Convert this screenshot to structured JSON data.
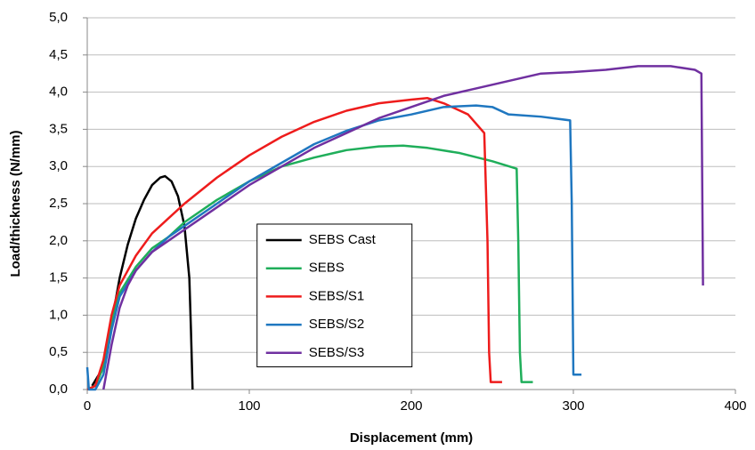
{
  "chart_data": {
    "type": "line",
    "xlabel": "Displacement (mm)",
    "ylabel": "Load/thickness (N/mm)",
    "xlim": [
      0,
      400
    ],
    "xticks": [
      0,
      100,
      200,
      300,
      400
    ],
    "ylim": [
      0,
      5
    ],
    "yticks": [
      {
        "value": 0,
        "label": "0,0"
      },
      {
        "value": 0.5,
        "label": "0,5"
      },
      {
        "value": 1,
        "label": "1,0"
      },
      {
        "value": 1.5,
        "label": "1,5"
      },
      {
        "value": 2,
        "label": "2,0"
      },
      {
        "value": 2.5,
        "label": "2,5"
      },
      {
        "value": 3,
        "label": "3,0"
      },
      {
        "value": 3.5,
        "label": "3,5"
      },
      {
        "value": 4,
        "label": "4,0"
      },
      {
        "value": 4.5,
        "label": "4,5"
      },
      {
        "value": 5,
        "label": "5,0"
      }
    ],
    "grid": true,
    "legend": "center",
    "series": [
      {
        "name": "SEBS Cast",
        "color": "#000000",
        "x": [
          3,
          10,
          15,
          20,
          25,
          30,
          35,
          40,
          45,
          48,
          52,
          56,
          60,
          63,
          64,
          65
        ],
        "values": [
          0.05,
          0.3,
          0.9,
          1.5,
          1.95,
          2.3,
          2.55,
          2.75,
          2.85,
          2.87,
          2.8,
          2.6,
          2.2,
          1.5,
          0.8,
          0
        ]
      },
      {
        "name": "SEBS",
        "color": "#1fae5a",
        "x": [
          0,
          5,
          10,
          15,
          20,
          30,
          40,
          50,
          60,
          80,
          100,
          120,
          140,
          160,
          180,
          195,
          210,
          230,
          250,
          265,
          266,
          267,
          268,
          275
        ],
        "values": [
          0,
          0.05,
          0.3,
          0.9,
          1.3,
          1.65,
          1.9,
          2.05,
          2.25,
          2.55,
          2.8,
          3.0,
          3.12,
          3.22,
          3.27,
          3.28,
          3.25,
          3.18,
          3.07,
          2.97,
          2.0,
          0.5,
          0.1,
          0.1
        ]
      },
      {
        "name": "SEBS/S1",
        "color": "#ee1c1c",
        "x": [
          0,
          5,
          10,
          15,
          20,
          30,
          40,
          50,
          60,
          80,
          100,
          120,
          140,
          160,
          180,
          200,
          210,
          220,
          235,
          245,
          247,
          248,
          249,
          256
        ],
        "values": [
          0,
          0.05,
          0.4,
          1.0,
          1.4,
          1.8,
          2.1,
          2.3,
          2.5,
          2.85,
          3.15,
          3.4,
          3.6,
          3.75,
          3.85,
          3.9,
          3.92,
          3.85,
          3.7,
          3.45,
          2.0,
          0.5,
          0.1,
          0.1
        ]
      },
      {
        "name": "SEBS/S2",
        "color": "#1f77c0",
        "x": [
          0,
          1,
          5,
          10,
          15,
          20,
          30,
          40,
          50,
          60,
          80,
          100,
          120,
          140,
          160,
          180,
          200,
          220,
          240,
          250,
          260,
          280,
          298,
          299,
          300,
          305
        ],
        "values": [
          0.3,
          0,
          0,
          0.2,
          0.8,
          1.25,
          1.6,
          1.85,
          2.05,
          2.2,
          2.5,
          2.8,
          3.05,
          3.3,
          3.48,
          3.62,
          3.7,
          3.8,
          3.82,
          3.8,
          3.7,
          3.67,
          3.62,
          2.5,
          0.2,
          0.2
        ]
      },
      {
        "name": "SEBS/S3",
        "color": "#7030a0",
        "x": [
          10,
          15,
          20,
          25,
          30,
          40,
          50,
          60,
          80,
          100,
          120,
          140,
          160,
          180,
          200,
          220,
          240,
          260,
          280,
          300,
          320,
          340,
          360,
          375,
          379,
          380
        ],
        "values": [
          0,
          0.6,
          1.1,
          1.4,
          1.6,
          1.85,
          2.0,
          2.15,
          2.45,
          2.75,
          3.0,
          3.25,
          3.45,
          3.65,
          3.8,
          3.95,
          4.05,
          4.15,
          4.25,
          4.27,
          4.3,
          4.35,
          4.35,
          4.3,
          4.25,
          1.4
        ]
      }
    ]
  }
}
